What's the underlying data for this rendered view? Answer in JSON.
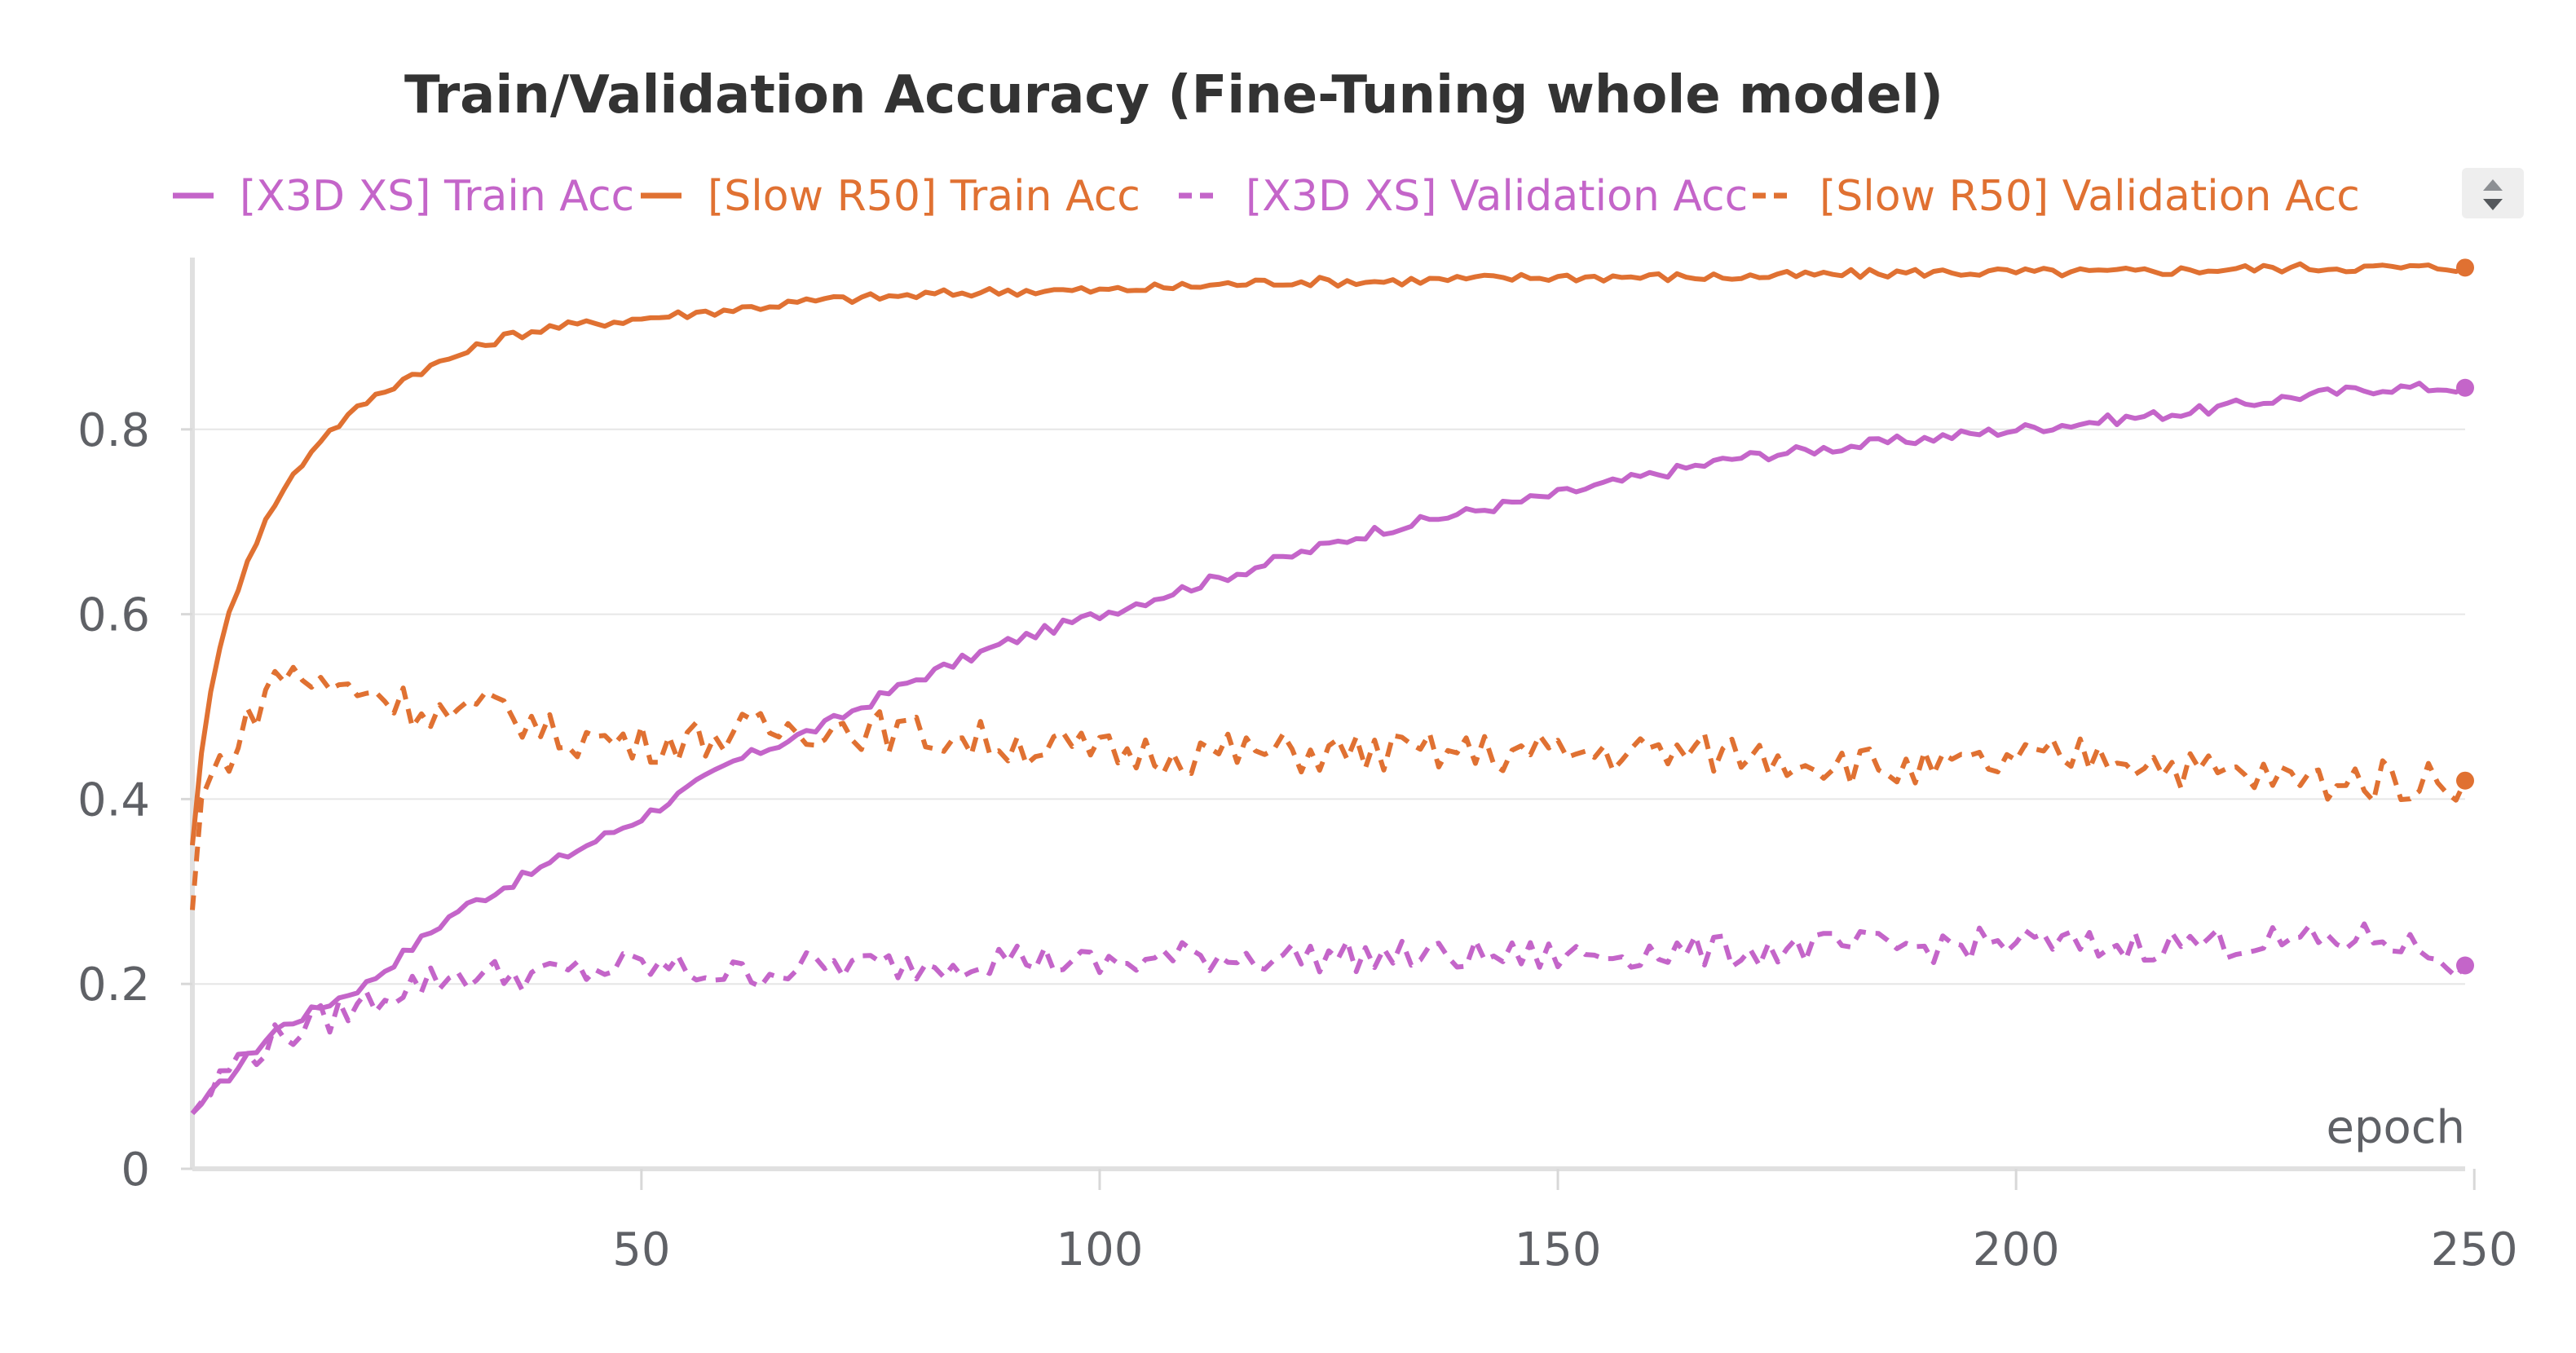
{
  "chart_data": {
    "type": "line",
    "title": "Train/Validation Accuracy (Fine-Tuning whole model)",
    "xlabel": "epoch",
    "ylabel": "",
    "xlim": [
      1,
      249
    ],
    "ylim": [
      0,
      1.0
    ],
    "x_ticks": [
      50,
      100,
      150,
      200,
      "250"
    ],
    "y_ticks": [
      0,
      0.2,
      0.4,
      0.6,
      0.8
    ],
    "y_tick_labels": [
      "0",
      "0.2",
      "0.4",
      "0.6",
      "0.8"
    ],
    "grid": "horizontal",
    "legend_position": "top",
    "colors": {
      "x3d": "#c465c9",
      "slow": "#e07132"
    },
    "series": [
      {
        "name": "[X3D XS] Train Acc",
        "color": "#c465c9",
        "style": "solid",
        "x": [
          1,
          10,
          20,
          30,
          40,
          50,
          60,
          70,
          80,
          90,
          100,
          110,
          120,
          130,
          140,
          150,
          160,
          170,
          180,
          190,
          200,
          210,
          220,
          230,
          240,
          249
        ],
        "values": [
          0.06,
          0.15,
          0.2,
          0.28,
          0.33,
          0.38,
          0.44,
          0.48,
          0.53,
          0.57,
          0.6,
          0.63,
          0.66,
          0.69,
          0.71,
          0.73,
          0.75,
          0.77,
          0.78,
          0.79,
          0.8,
          0.81,
          0.82,
          0.835,
          0.845,
          0.845
        ]
      },
      {
        "name": "[Slow R50] Train Acc",
        "color": "#e07132",
        "style": "solid",
        "x": [
          1,
          2,
          3,
          5,
          7,
          9,
          10,
          12,
          15,
          20,
          25,
          30,
          35,
          40,
          50,
          60,
          70,
          80,
          90,
          100,
          110,
          120,
          130,
          150,
          170,
          190,
          210,
          230,
          249
        ],
        "values": [
          0.35,
          0.45,
          0.52,
          0.6,
          0.66,
          0.7,
          0.72,
          0.75,
          0.79,
          0.83,
          0.86,
          0.88,
          0.9,
          0.91,
          0.92,
          0.93,
          0.94,
          0.945,
          0.95,
          0.95,
          0.955,
          0.96,
          0.96,
          0.965,
          0.965,
          0.97,
          0.97,
          0.975,
          0.975
        ]
      },
      {
        "name": "[X3D XS] Validation Acc",
        "color": "#c465c9",
        "style": "dashed",
        "x": [
          1,
          5,
          10,
          15,
          20,
          25,
          30,
          35,
          40,
          50,
          60,
          70,
          80,
          90,
          100,
          110,
          120,
          130,
          140,
          150,
          160,
          170,
          180,
          190,
          200,
          210,
          220,
          230,
          240,
          249
        ],
        "values": [
          0.06,
          0.11,
          0.14,
          0.16,
          0.18,
          0.2,
          0.21,
          0.21,
          0.21,
          0.22,
          0.21,
          0.22,
          0.22,
          0.23,
          0.22,
          0.23,
          0.23,
          0.23,
          0.23,
          0.23,
          0.235,
          0.235,
          0.24,
          0.24,
          0.245,
          0.24,
          0.245,
          0.245,
          0.25,
          0.22
        ]
      },
      {
        "name": "[Slow R50] Validation Acc",
        "color": "#e07132",
        "style": "dashed",
        "x": [
          1,
          2,
          4,
          6,
          8,
          10,
          12,
          15,
          20,
          25,
          30,
          35,
          40,
          50,
          60,
          70,
          80,
          90,
          100,
          110,
          120,
          130,
          140,
          150,
          160,
          170,
          180,
          190,
          200,
          210,
          220,
          230,
          240,
          249
        ],
        "values": [
          0.28,
          0.4,
          0.44,
          0.46,
          0.5,
          0.53,
          0.54,
          0.52,
          0.52,
          0.5,
          0.49,
          0.5,
          0.47,
          0.46,
          0.47,
          0.48,
          0.47,
          0.46,
          0.45,
          0.45,
          0.45,
          0.45,
          0.45,
          0.45,
          0.45,
          0.45,
          0.44,
          0.43,
          0.44,
          0.45,
          0.43,
          0.42,
          0.42,
          0.42
        ]
      }
    ]
  }
}
